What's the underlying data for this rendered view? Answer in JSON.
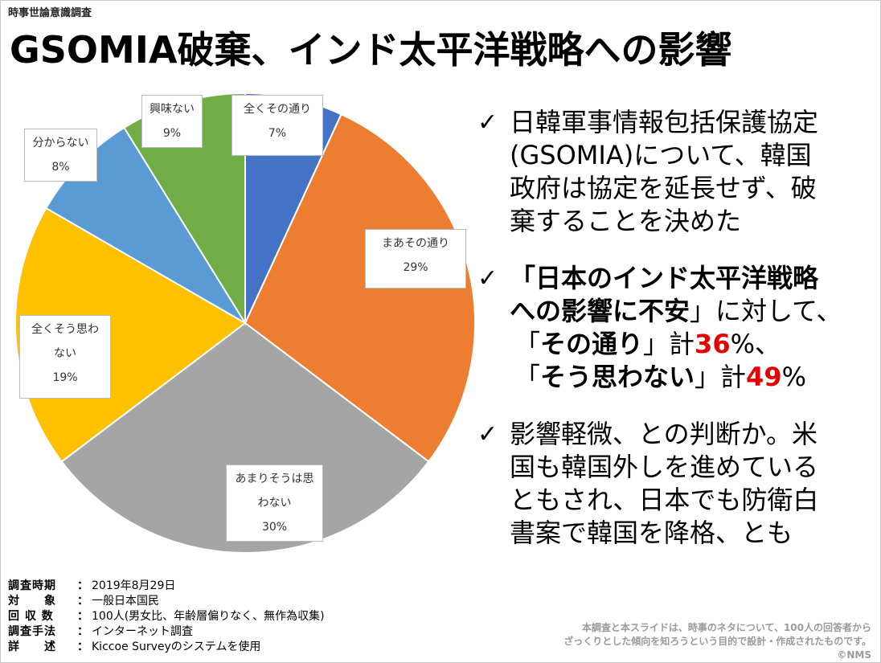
{
  "header": {
    "label": "時事世論意識調査"
  },
  "title": "GSOMIA破棄、インド太平洋戦略への影響",
  "chart_data": {
    "type": "pie",
    "slices": [
      {
        "lines": [
          "全くその通り"
        ],
        "pct": "7%",
        "value": 7,
        "color": "#4472c4"
      },
      {
        "lines": [
          "まあその通り"
        ],
        "pct": "29%",
        "value": 29,
        "color": "#ed7d31"
      },
      {
        "lines": [
          "あまりそうは思",
          "わない"
        ],
        "pct": "30%",
        "value": 30,
        "color": "#a5a5a5"
      },
      {
        "lines": [
          "全くそう思わ",
          "ない"
        ],
        "pct": "19%",
        "value": 19,
        "color": "#ffc000"
      },
      {
        "lines": [
          "分からない"
        ],
        "pct": "8%",
        "value": 8,
        "color": "#5b9bd5"
      },
      {
        "lines": [
          "興味ない"
        ],
        "pct": "9%",
        "value": 9,
        "color": "#70ad47"
      }
    ]
  },
  "bullets": {
    "check": "✓",
    "b1": [
      "日韓軍事情報包括保護協定",
      "(GSOMIA)について、韓国",
      "政府は協定を延長せず、破",
      "棄することを決めた"
    ],
    "b2": {
      "l1": "「日本のインド太平洋戦略",
      "l2a": "への影響に不安",
      "l2b": "」に対して、",
      "l3a": "「",
      "l3b": "その通り",
      "l3c": "」計",
      "l3d": "36",
      "l3e": "%、",
      "l4a": "「",
      "l4b": "そう思わない",
      "l4c": "」計",
      "l4d": "49",
      "l4e": "%"
    },
    "b3": [
      "影響軽微、との判断か。米",
      "国も韓国外しを進めている",
      "ともされ、日本でも防衛白",
      "書案で韓国を降格、とも"
    ]
  },
  "survey": [
    {
      "key": "調査時期",
      "sep": "：",
      "value": "2019年8月29日"
    },
    {
      "key": "対　　象",
      "sep": "：",
      "value": "一般日本国民"
    },
    {
      "key": "回 収 数",
      "sep": "：",
      "value": "100人(男女比、年齢層偏りなく、無作為収集)"
    },
    {
      "key": "調査手法",
      "sep": "：",
      "value": "インターネット調査"
    },
    {
      "key": "詳　　述",
      "sep": "：",
      "value": "Kiccoe Surveyのシステムを使用"
    }
  ],
  "note": [
    "本調査と本スライドは、時事のネタについて、100人の回答者から",
    "ざっくりとした傾向を知ろうという目的で設計・作成されたものです。",
    "©NMS"
  ]
}
